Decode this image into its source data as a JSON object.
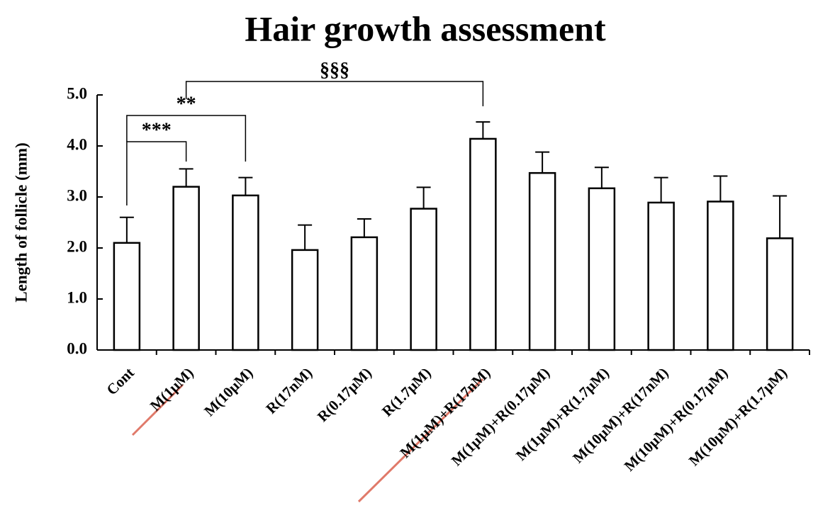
{
  "chart_data": {
    "type": "bar",
    "title": "Hair growth assessment",
    "y_label": "Length of follicle (mm)",
    "categories": [
      "Cont",
      "M(1μM)",
      "M(10μM)",
      "R(17nM)",
      "R(0.17μM)",
      "R(1.7μM)",
      "M(1μM)+R(17nM)",
      "M(1μM)+R(0.17μM)",
      "M(1μM)+R(1.7μM)",
      "M(10μM)+R(17nM)",
      "M(10μM)+R(0.17μM)",
      "M(10μM)+R(1.7μM)"
    ],
    "values": [
      2.1,
      3.2,
      3.03,
      1.96,
      2.21,
      2.77,
      4.14,
      3.47,
      3.17,
      2.89,
      2.91,
      2.19
    ],
    "errors": [
      0.5,
      0.35,
      0.35,
      0.49,
      0.36,
      0.42,
      0.33,
      0.41,
      0.41,
      0.49,
      0.5,
      0.83
    ],
    "color": "#ffffff",
    "ylim": [
      0,
      5
    ],
    "yticks": [
      {
        "value": 0,
        "label": "0.0"
      },
      {
        "value": 1,
        "label": "1.0"
      },
      {
        "value": 2,
        "label": "2.0"
      },
      {
        "value": 3,
        "label": "3.0"
      },
      {
        "value": 4,
        "label": "4.0"
      },
      {
        "value": 5,
        "label": "5.0"
      }
    ],
    "annotations": [
      "***",
      "**",
      "§§§"
    ]
  }
}
